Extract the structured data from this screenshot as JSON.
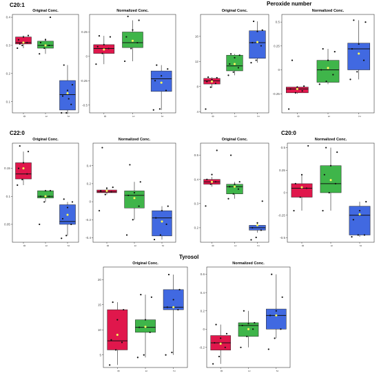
{
  "colors": {
    "g0": "#e0174c",
    "g1": "#3fb54a",
    "g2": "#4169e1",
    "median": "#111111",
    "mean": "#ffff66",
    "point": "#111111"
  },
  "groups": [
    {
      "title": "C20:1"
    },
    {
      "title": "Peroxide number"
    },
    {
      "title": "C22:0"
    },
    {
      "title": "C20:0"
    },
    {
      "title": "Tyrosol"
    }
  ],
  "chart_data": [
    {
      "type": "box",
      "group": "C20:1",
      "title": "Original Conc.",
      "categories": [
        "0",
        "1",
        "2"
      ],
      "ylim": [
        0.06,
        0.41
      ],
      "yticks": [
        0.1,
        0.2,
        0.3,
        0.4
      ],
      "boxes": [
        {
          "q1": 0.305,
          "median": 0.31,
          "q3": 0.33,
          "low": 0.29,
          "high": 0.335,
          "mean": 0.31,
          "points": [
            0.29,
            0.3,
            0.31,
            0.32,
            0.33,
            0.335,
            0.305
          ]
        },
        {
          "q1": 0.29,
          "median": 0.3,
          "q3": 0.315,
          "low": 0.27,
          "high": 0.325,
          "mean": 0.3,
          "points": [
            0.27,
            0.29,
            0.3,
            0.31,
            0.32,
            0.4
          ]
        },
        {
          "q1": 0.07,
          "median": 0.125,
          "q3": 0.175,
          "low": 0.06,
          "high": 0.23,
          "mean": 0.13,
          "points": [
            0.06,
            0.06,
            0.09,
            0.12,
            0.14,
            0.16,
            0.23,
            0.11
          ]
        }
      ]
    },
    {
      "type": "box",
      "group": "C20:1",
      "title": "Normalized Conc.",
      "categories": [
        "0",
        "1",
        "2"
      ],
      "ylim": [
        -0.58,
        0.43
      ],
      "yticks": [
        -0.5,
        -0.25,
        0.0,
        0.25
      ],
      "boxes": [
        {
          "q1": 0.03,
          "median": 0.08,
          "q3": 0.12,
          "low": -0.08,
          "high": 0.21,
          "mean": 0.07,
          "points": [
            -0.08,
            0.03,
            0.08,
            0.1,
            0.12,
            0.2,
            0.21
          ]
        },
        {
          "q1": 0.09,
          "median": 0.14,
          "q3": 0.25,
          "low": -0.05,
          "high": 0.37,
          "mean": 0.16,
          "points": [
            -0.05,
            0.08,
            0.14,
            0.2,
            0.27,
            0.37,
            0.41
          ]
        },
        {
          "q1": -0.36,
          "median": -0.23,
          "q3": -0.15,
          "low": -0.55,
          "high": -0.09,
          "mean": -0.27,
          "points": [
            -0.55,
            -0.54,
            -0.35,
            -0.25,
            -0.2,
            -0.13,
            -0.09
          ]
        }
      ]
    },
    {
      "type": "box",
      "group": "Peroxide number",
      "title": "Original Conc.",
      "categories": [
        "0",
        "1",
        "2"
      ],
      "ylim": [
        3.8,
        19.5
      ],
      "yticks": [
        4,
        8,
        12,
        16
      ],
      "boxes": [
        {
          "q1": 8.4,
          "median": 8.9,
          "q3": 9.3,
          "low": 7.8,
          "high": 9.5,
          "mean": 8.8,
          "points": [
            4.4,
            7.9,
            8.5,
            8.8,
            9.1,
            9.4,
            9.5
          ]
        },
        {
          "q1": 10.5,
          "median": 11.3,
          "q3": 13.0,
          "low": 9.8,
          "high": 13.2,
          "mean": 11.6,
          "points": [
            9.8,
            10.3,
            11.0,
            11.6,
            12.6,
            13.0,
            13.2
          ]
        },
        {
          "q1": 12.5,
          "median": 15.0,
          "q3": 16.9,
          "low": 11.8,
          "high": 18.4,
          "mean": 15.1,
          "points": [
            11.8,
            12.2,
            14.5,
            15.0,
            16.8,
            17.0,
            18.4
          ]
        }
      ]
    },
    {
      "type": "box",
      "group": "Peroxide number",
      "title": "Normalized Conc.",
      "categories": [
        "0",
        "1",
        "2"
      ],
      "ylim": [
        -0.45,
        0.58
      ],
      "yticks": [
        -0.25,
        0.0,
        0.25,
        0.5
      ],
      "boxes": [
        {
          "q1": -0.24,
          "median": -0.2,
          "q3": -0.18,
          "low": -0.25,
          "high": -0.17,
          "mean": -0.2,
          "points": [
            -0.41,
            -0.24,
            -0.22,
            -0.2,
            -0.18,
            -0.17,
            0.1
          ]
        },
        {
          "q1": -0.13,
          "median": 0.0,
          "q3": 0.1,
          "low": -0.15,
          "high": 0.22,
          "mean": 0.02,
          "points": [
            -0.15,
            -0.12,
            -0.05,
            0.0,
            0.1,
            0.19,
            0.22
          ]
        },
        {
          "q1": 0.0,
          "median": 0.22,
          "q3": 0.28,
          "low": -0.1,
          "high": 0.52,
          "mean": 0.17,
          "points": [
            -0.1,
            -0.02,
            0.1,
            0.22,
            0.27,
            0.5,
            0.52
          ]
        }
      ]
    },
    {
      "type": "box",
      "group": "C22:0",
      "title": "Original Conc.",
      "categories": [
        "0",
        "1",
        "2"
      ],
      "ylim": [
        0.018,
        0.195
      ],
      "yticks": [
        0.05,
        0.1,
        0.15
      ],
      "boxes": [
        {
          "q1": 0.131,
          "median": 0.14,
          "q3": 0.16,
          "low": 0.12,
          "high": 0.18,
          "mean": 0.15,
          "points": [
            0.12,
            0.13,
            0.14,
            0.15,
            0.16,
            0.18,
            0.19
          ]
        },
        {
          "q1": 0.097,
          "median": 0.1,
          "q3": 0.11,
          "low": 0.09,
          "high": 0.11,
          "mean": 0.1,
          "points": [
            0.05,
            0.09,
            0.1,
            0.1,
            0.11,
            0.11
          ]
        },
        {
          "q1": 0.05,
          "median": 0.055,
          "q3": 0.085,
          "low": 0.03,
          "high": 0.09,
          "mean": 0.067,
          "points": [
            0.025,
            0.03,
            0.05,
            0.06,
            0.08,
            0.09,
            0.095
          ]
        }
      ]
    },
    {
      "type": "box",
      "group": "C22:0",
      "title": "Normalized Conc.",
      "categories": [
        "0",
        "1",
        "2"
      ],
      "ylim": [
        -0.45,
        0.65
      ],
      "yticks": [
        -0.4,
        -0.2,
        0.0,
        0.2,
        0.4
      ],
      "boxes": [
        {
          "q1": 0.1,
          "median": 0.11,
          "q3": 0.13,
          "low": 0.08,
          "high": 0.16,
          "mean": 0.12,
          "points": [
            -0.1,
            0.08,
            0.11,
            0.12,
            0.15,
            0.16,
            0.6
          ]
        },
        {
          "q1": -0.07,
          "median": 0.07,
          "q3": 0.12,
          "low": -0.2,
          "high": 0.22,
          "mean": 0.04,
          "points": [
            -0.37,
            -0.2,
            -0.05,
            0.07,
            0.1,
            0.22,
            0.41
          ]
        },
        {
          "q1": -0.38,
          "median": -0.18,
          "q3": -0.1,
          "low": -0.42,
          "high": -0.05,
          "mean": -0.22,
          "points": [
            -0.42,
            -0.37,
            -0.25,
            -0.18,
            -0.1,
            -0.05
          ]
        }
      ]
    },
    {
      "type": "box",
      "group": "C20:0",
      "title": "Original Conc.",
      "categories": [
        "0",
        "1",
        "2"
      ],
      "ylim": [
        0.14,
        0.55
      ],
      "yticks": [
        0.2,
        0.3,
        0.4,
        0.5
      ],
      "boxes": [
        {
          "q1": 0.38,
          "median": 0.39,
          "q3": 0.4,
          "low": 0.37,
          "high": 0.41,
          "mean": 0.39,
          "points": [
            0.29,
            0.38,
            0.39,
            0.4,
            0.42,
            0.52
          ]
        },
        {
          "q1": 0.34,
          "median": 0.37,
          "q3": 0.38,
          "low": 0.32,
          "high": 0.39,
          "mean": 0.37,
          "points": [
            0.32,
            0.34,
            0.36,
            0.37,
            0.38,
            0.39,
            0.5
          ]
        },
        {
          "q1": 0.19,
          "median": 0.2,
          "q3": 0.21,
          "low": 0.18,
          "high": 0.22,
          "mean": 0.21,
          "points": [
            0.15,
            0.16,
            0.19,
            0.2,
            0.22,
            0.31
          ]
        }
      ]
    },
    {
      "type": "box",
      "group": "C20:0",
      "title": "Normalized Conc.",
      "categories": [
        "0",
        "1",
        "2"
      ],
      "ylim": [
        -0.55,
        0.55
      ],
      "yticks": [
        -0.5,
        -0.25,
        0.0,
        0.25,
        0.5
      ],
      "boxes": [
        {
          "q1": -0.05,
          "median": 0.05,
          "q3": 0.1,
          "low": -0.2,
          "high": 0.2,
          "mean": 0.06,
          "points": [
            -0.2,
            -0.05,
            0.05,
            0.1,
            0.2,
            0.52
          ]
        },
        {
          "q1": 0.0,
          "median": 0.1,
          "q3": 0.3,
          "low": -0.2,
          "high": 0.5,
          "mean": 0.14,
          "points": [
            -0.2,
            0.0,
            0.1,
            0.2,
            0.3,
            0.45,
            0.5
          ]
        },
        {
          "q1": -0.47,
          "median": -0.25,
          "q3": -0.15,
          "low": -0.49,
          "high": -0.1,
          "mean": -0.24,
          "points": [
            -0.49,
            -0.47,
            -0.47,
            -0.3,
            -0.2,
            -0.1
          ]
        }
      ]
    },
    {
      "type": "box",
      "group": "Tyrosol",
      "title": "Original Conc.",
      "categories": [
        "0",
        "1",
        "2"
      ],
      "ylim": [
        2.5,
        22.5
      ],
      "yticks": [
        5,
        10,
        15,
        20
      ],
      "boxes": [
        {
          "q1": 6.0,
          "median": 7.8,
          "q3": 14.0,
          "low": 3.0,
          "high": 15.5,
          "mean": 9.0,
          "points": [
            3.0,
            6.0,
            7.5,
            8.0,
            12.0,
            14.0,
            15.5
          ]
        },
        {
          "q1": 9.5,
          "median": 10.5,
          "q3": 12.0,
          "low": 4.5,
          "high": 17.0,
          "mean": 10.6,
          "points": [
            4.5,
            5.0,
            9.5,
            10.5,
            12.0,
            16.5,
            17.0
          ]
        },
        {
          "q1": 14.0,
          "median": 14.5,
          "q3": 18.0,
          "low": 5.0,
          "high": 21.0,
          "mean": 14.5,
          "points": [
            5.0,
            5.5,
            14.0,
            14.5,
            16.0,
            18.0,
            21.0
          ]
        }
      ]
    },
    {
      "type": "box",
      "group": "Tyrosol",
      "title": "Normalized Conc.",
      "categories": [
        "0",
        "1",
        "2"
      ],
      "ylim": [
        -0.42,
        0.68
      ],
      "yticks": [
        -0.2,
        0.0,
        0.2,
        0.4,
        0.6
      ],
      "boxes": [
        {
          "q1": -0.23,
          "median": -0.15,
          "q3": -0.07,
          "low": -0.38,
          "high": 0.05,
          "mean": -0.16,
          "points": [
            -0.38,
            -0.3,
            -0.2,
            -0.15,
            -0.1,
            -0.05,
            0.05
          ]
        },
        {
          "q1": -0.08,
          "median": 0.04,
          "q3": 0.07,
          "low": -0.2,
          "high": 0.2,
          "mean": 0.0,
          "points": [
            -0.2,
            -0.08,
            0.0,
            0.04,
            0.06,
            0.07,
            0.2
          ]
        },
        {
          "q1": 0.0,
          "median": 0.15,
          "q3": 0.22,
          "low": -0.1,
          "high": 0.6,
          "mean": 0.15,
          "points": [
            -0.22,
            -0.1,
            0.0,
            0.15,
            0.2,
            0.35,
            0.6
          ]
        }
      ]
    }
  ]
}
